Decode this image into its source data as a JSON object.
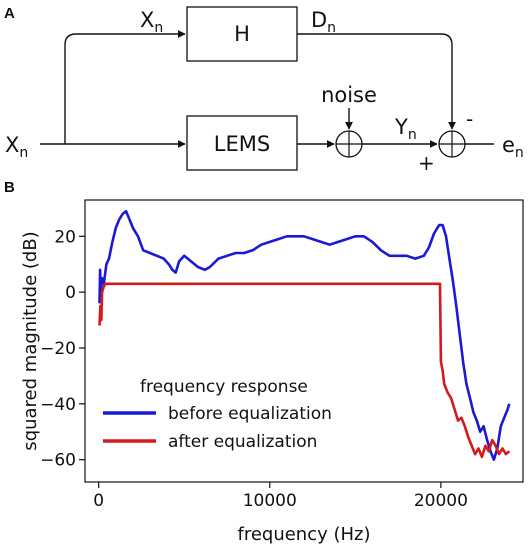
{
  "panel_a": {
    "label": "A",
    "blocks": {
      "h": "H",
      "lems": "LEMS"
    },
    "signals": {
      "x_top": {
        "base": "X",
        "sub": "n"
      },
      "x_left": {
        "base": "X",
        "sub": "n"
      },
      "d": {
        "base": "D",
        "sub": "n"
      },
      "y": {
        "base": "Y",
        "sub": "n"
      },
      "e": {
        "base": "e",
        "sub": "n"
      }
    },
    "noise": "noise",
    "minus": "-",
    "plus": "+"
  },
  "panel_b": {
    "label": "B",
    "chart_data": {
      "type": "line",
      "title": "",
      "xlabel": "frequency (Hz)",
      "ylabel": "squared magnitude (dB)",
      "xlim": [
        -800,
        24800
      ],
      "ylim": [
        -68,
        33
      ],
      "xticks": [
        0,
        10000,
        20000
      ],
      "yticks": [
        -60,
        -40,
        -20,
        0,
        20
      ],
      "legend_title": "frequency response",
      "legend_position": "lower-left",
      "grid": false,
      "series": [
        {
          "name": "before equalization",
          "color": "#1a1ad6",
          "points": [
            [
              50,
              -4
            ],
            [
              80,
              8
            ],
            [
              120,
              0
            ],
            [
              200,
              5
            ],
            [
              300,
              3
            ],
            [
              450,
              10
            ],
            [
              600,
              12
            ],
            [
              800,
              18
            ],
            [
              1000,
              23
            ],
            [
              1200,
              26
            ],
            [
              1400,
              28
            ],
            [
              1600,
              29
            ],
            [
              1800,
              26
            ],
            [
              2000,
              23
            ],
            [
              2300,
              20
            ],
            [
              2600,
              15
            ],
            [
              3000,
              14
            ],
            [
              3400,
              13
            ],
            [
              3800,
              12
            ],
            [
              4100,
              10
            ],
            [
              4300,
              8
            ],
            [
              4500,
              7
            ],
            [
              4700,
              11
            ],
            [
              5000,
              13
            ],
            [
              5400,
              11
            ],
            [
              5800,
              9
            ],
            [
              6200,
              8
            ],
            [
              6500,
              9
            ],
            [
              7000,
              12
            ],
            [
              7500,
              13
            ],
            [
              8000,
              14
            ],
            [
              8500,
              14
            ],
            [
              9000,
              15
            ],
            [
              9500,
              17
            ],
            [
              10000,
              18
            ],
            [
              10500,
              19
            ],
            [
              11000,
              20
            ],
            [
              11500,
              20
            ],
            [
              12000,
              20
            ],
            [
              12500,
              19
            ],
            [
              13000,
              18
            ],
            [
              13500,
              17
            ],
            [
              14000,
              18
            ],
            [
              14500,
              19
            ],
            [
              15000,
              20
            ],
            [
              15500,
              20
            ],
            [
              16000,
              18
            ],
            [
              16500,
              15
            ],
            [
              17000,
              13
            ],
            [
              17500,
              13
            ],
            [
              18000,
              13
            ],
            [
              18500,
              12
            ],
            [
              19000,
              13
            ],
            [
              19300,
              16
            ],
            [
              19600,
              21
            ],
            [
              19900,
              24
            ],
            [
              20100,
              24
            ],
            [
              20300,
              20
            ],
            [
              20500,
              12
            ],
            [
              20700,
              4
            ],
            [
              20900,
              -5
            ],
            [
              21100,
              -15
            ],
            [
              21300,
              -25
            ],
            [
              21500,
              -33
            ],
            [
              21700,
              -38
            ],
            [
              21900,
              -43
            ],
            [
              22100,
              -46
            ],
            [
              22300,
              -50
            ],
            [
              22500,
              -48
            ],
            [
              22700,
              -53
            ],
            [
              22900,
              -57
            ],
            [
              23100,
              -60
            ],
            [
              23300,
              -56
            ],
            [
              23500,
              -48
            ],
            [
              23700,
              -45
            ],
            [
              23900,
              -42
            ],
            [
              24000,
              -40
            ]
          ]
        },
        {
          "name": "after equalization",
          "color": "#d41a1a",
          "points": [
            [
              50,
              -12
            ],
            [
              100,
              -5
            ],
            [
              150,
              -10
            ],
            [
              200,
              0
            ],
            [
              300,
              2
            ],
            [
              400,
              3
            ],
            [
              600,
              3
            ],
            [
              1000,
              3
            ],
            [
              2000,
              3
            ],
            [
              5000,
              3
            ],
            [
              10000,
              3
            ],
            [
              15000,
              3
            ],
            [
              19800,
              3
            ],
            [
              19950,
              3
            ],
            [
              20000,
              -25
            ],
            [
              20100,
              -28
            ],
            [
              20200,
              -33
            ],
            [
              20400,
              -36
            ],
            [
              20600,
              -38
            ],
            [
              20800,
              -42
            ],
            [
              21000,
              -46
            ],
            [
              21200,
              -45
            ],
            [
              21400,
              -48
            ],
            [
              21600,
              -52
            ],
            [
              21800,
              -55
            ],
            [
              22000,
              -58
            ],
            [
              22200,
              -56
            ],
            [
              22400,
              -59
            ],
            [
              22600,
              -55
            ],
            [
              22800,
              -57
            ],
            [
              23000,
              -53
            ],
            [
              23200,
              -55
            ],
            [
              23400,
              -58
            ],
            [
              23600,
              -56
            ],
            [
              23800,
              -58
            ],
            [
              24000,
              -57
            ]
          ]
        }
      ]
    }
  }
}
